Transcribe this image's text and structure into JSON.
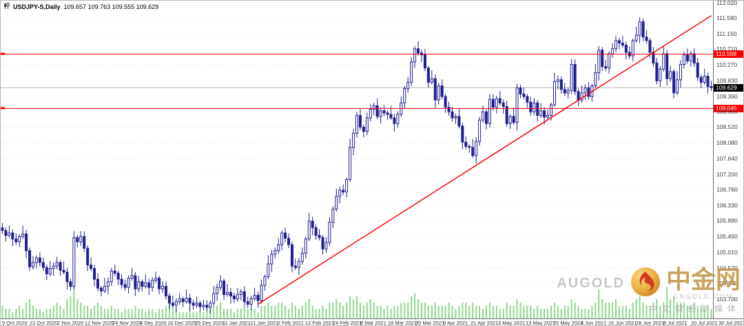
{
  "window": {
    "symbol_timeframe": "USDJPY-S,Daily",
    "ohlc_display": "109.657 109.763 109.555 109.629"
  },
  "chart_data": {
    "type": "candlestick",
    "symbol": "USDJPY-S",
    "timeframe": "Daily",
    "current_ohlc": {
      "open": 109.657,
      "high": 109.763,
      "low": 109.555,
      "close": 109.629
    },
    "y_min": 103.15,
    "y_max": 112.07,
    "y_ticks": [
      "112.020",
      "111.580",
      "111.150",
      "110.710",
      "110.270",
      "109.830",
      "109.390",
      "108.950",
      "108.520",
      "108.080",
      "107.640",
      "107.200",
      "106.760",
      "106.330",
      "105.890",
      "105.450",
      "105.010",
      "104.570",
      "104.140",
      "103.700"
    ],
    "x_tick_labels": [
      "9 Oct 2020",
      "21 Oct 2020",
      "2 Nov 2020",
      "12 Nov 2020",
      "24 Nov 2020",
      "4 Dec 2020",
      "16 Dec 2020",
      "29 Dec 2020",
      "11 Jan 2021",
      "21 Jan 2021",
      "2 Feb 2021",
      "12 Feb 2021",
      "24 Feb 2021",
      "8 Mar 2021",
      "18 Mar 2021",
      "30 Mar 2021",
      "9 Apr 2021",
      "21 Apr 2021",
      "3 May 2021",
      "13 May 2021",
      "25 May 2021",
      "4 Jun 2021",
      "16 Jun 2021",
      "28 Jun 2021",
      "8 Jul 2021",
      "20 Jul 2021",
      "30 Jul 2021"
    ],
    "closes": [
      105.62,
      105.48,
      105.55,
      105.38,
      105.3,
      105.45,
      105.52,
      105.05,
      104.6,
      104.72,
      104.85,
      104.72,
      104.58,
      104.4,
      104.55,
      104.62,
      104.72,
      104.5,
      104.45,
      104.18,
      104.05,
      105.42,
      105.3,
      105.45,
      105.12,
      104.65,
      104.55,
      104.25,
      104.0,
      103.92,
      104.05,
      104.18,
      104.48,
      104.42,
      104.25,
      104.1,
      104.02,
      104.28,
      104.35,
      103.98,
      104.18,
      104.05,
      104.15,
      104.02,
      104.22,
      104.28,
      103.98,
      104.05,
      103.78,
      103.58,
      103.52,
      103.62,
      103.7,
      103.62,
      103.72,
      103.58,
      103.52,
      103.58,
      103.48,
      103.52,
      103.46,
      103.58,
      103.85,
      104.02,
      104.2,
      103.82,
      103.88,
      103.78,
      103.7,
      103.82,
      103.9,
      103.62,
      103.55,
      103.7,
      103.8,
      103.65,
      104.08,
      104.32,
      104.68,
      104.95,
      105.05,
      105.22,
      105.55,
      105.4,
      105.22,
      104.62,
      104.58,
      104.75,
      104.98,
      105.38,
      105.88,
      105.7,
      105.48,
      105.42,
      105.1,
      105.28,
      105.85,
      106.22,
      106.58,
      106.75,
      106.7,
      107.05,
      107.95,
      108.35,
      108.85,
      108.52,
      108.4,
      108.78,
      109.02,
      109.12,
      108.82,
      108.98,
      108.92,
      108.88,
      108.78,
      108.62,
      108.88,
      109.2,
      109.6,
      109.78,
      110.35,
      110.72,
      110.6,
      110.55,
      110.18,
      109.78,
      109.88,
      109.28,
      109.68,
      109.38,
      109.08,
      108.95,
      108.78,
      108.82,
      108.55,
      108.1,
      107.98,
      107.95,
      107.72,
      108.12,
      108.72,
      108.95,
      108.62,
      109.3,
      109.08,
      109.32,
      109.2,
      109.1,
      108.62,
      108.82,
      108.65,
      109.62,
      109.45,
      109.38,
      109.22,
      108.95,
      109.2,
      108.85,
      108.98,
      108.8,
      108.85,
      109.15,
      109.8,
      109.85,
      109.58,
      109.48,
      109.55,
      110.28,
      109.52,
      109.28,
      109.48,
      109.62,
      109.38,
      109.68,
      110.05,
      110.68,
      110.22,
      110.18,
      110.58,
      110.72,
      110.95,
      110.88,
      110.82,
      110.62,
      110.52,
      110.95,
      111.1,
      111.48,
      111.05,
      110.95,
      110.62,
      110.32,
      109.82,
      110.15,
      110.58,
      109.88,
      110.08,
      109.48,
      109.85,
      110.28,
      110.55,
      110.38,
      110.58,
      110.32,
      109.92,
      109.78,
      109.95,
      109.66,
      109.63
    ],
    "volumes": [
      4,
      3,
      3,
      2,
      3,
      4,
      3,
      5,
      6,
      4,
      3,
      3,
      2,
      3,
      3,
      4,
      5,
      4,
      3,
      6,
      7,
      10,
      6,
      5,
      4,
      4,
      3,
      4,
      5,
      4,
      3,
      3,
      4,
      3,
      3,
      2,
      3,
      3,
      3,
      4,
      3,
      3,
      2,
      3,
      3,
      2,
      3,
      3,
      4,
      5,
      4,
      3,
      2,
      2,
      2,
      3,
      2,
      2,
      2,
      2,
      3,
      3,
      4,
      4,
      5,
      3,
      3,
      3,
      2,
      3,
      3,
      4,
      3,
      3,
      3,
      2,
      4,
      4,
      5,
      4,
      4,
      5,
      5,
      4,
      3,
      5,
      4,
      3,
      4,
      5,
      6,
      4,
      3,
      3,
      4,
      3,
      5,
      5,
      6,
      5,
      4,
      5,
      7,
      6,
      7,
      5,
      4,
      5,
      6,
      5,
      4,
      4,
      3,
      4,
      3,
      4,
      4,
      5,
      5,
      5,
      7,
      8,
      6,
      5,
      5,
      4,
      4,
      5,
      4,
      4,
      4,
      5,
      4,
      3,
      4,
      5,
      5,
      4,
      5,
      4,
      4,
      3,
      4,
      5,
      4,
      4,
      3,
      3,
      5,
      4,
      4,
      6,
      5,
      4,
      4,
      4,
      3,
      4,
      3,
      3,
      3,
      4,
      5,
      4,
      3,
      4,
      4,
      6,
      5,
      4,
      3,
      3,
      3,
      4,
      5,
      9,
      6,
      5,
      5,
      5,
      6,
      4,
      4,
      4,
      3,
      5,
      6,
      7,
      5,
      4,
      4,
      5,
      6,
      4,
      5,
      10,
      6,
      7,
      5,
      5,
      5,
      4,
      4,
      5,
      4,
      4,
      3,
      4,
      3
    ],
    "wick_high_pattern": [
      0.14,
      0.08,
      0.21,
      0.1,
      0.16,
      0.06,
      0.24,
      0.12,
      0.09,
      0.18,
      0.07,
      0.15
    ],
    "wick_low_pattern": [
      0.1,
      0.17,
      0.07,
      0.2,
      0.09,
      0.15,
      0.06,
      0.22,
      0.12,
      0.08,
      0.16,
      0.11
    ],
    "levels": [
      {
        "label": "110.568",
        "value": 110.568,
        "color": "#ff0000"
      },
      {
        "label": "109.045",
        "value": 109.045,
        "color": "#ff0000"
      }
    ],
    "price_line": {
      "label": "109.629",
      "value": 109.629,
      "tag_color": "#000000"
    },
    "trendline": {
      "from_index": 75,
      "from_price": 103.55,
      "to_index": 208,
      "to_price": 111.65,
      "color": "#ff0000"
    },
    "colors": {
      "candle": "#1f1f8f",
      "candle_up_fill": "#ffffff",
      "volume": "#8fd88f",
      "grid": "#e7e7e7",
      "bid_line": "#b3b3b3"
    },
    "legend_position": "none",
    "grid": "horizontal-dotted"
  },
  "watermark": {
    "brand_en": "AUGOLD",
    "brand_cn": "中金网",
    "domain": "CNGOLD.COM",
    "tagline": "中文财经新媒体"
  }
}
